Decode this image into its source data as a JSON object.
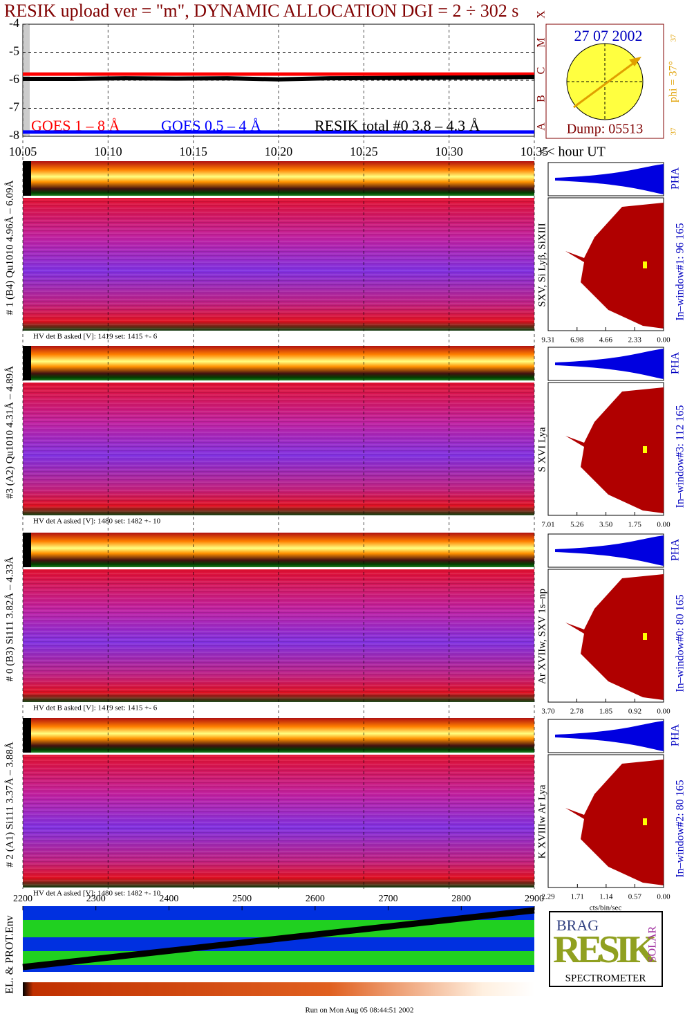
{
  "header": {
    "title": "RESIK upload ver = \"m\", DYNAMIC ALLOCATION  DGI =   2 ÷ 302 s"
  },
  "chart_data": {
    "type": "line",
    "xlabel": "<< hour UT",
    "x": [
      10.05,
      10.08,
      10.11,
      10.14,
      10.17,
      10.2,
      10.23,
      10.26,
      10.29,
      10.32,
      10.35
    ],
    "xlim": [
      10.05,
      10.35
    ],
    "xticks": [
      {
        "value": 10.05,
        "label": "10.05"
      },
      {
        "value": 10.1,
        "label": "10.10"
      },
      10.15,
      {
        "value": 10.2,
        "label": "10.20"
      },
      10.25,
      {
        "value": 10.3,
        "label": "10.30"
      },
      10.35
    ],
    "ylim": [
      -8,
      -4
    ],
    "yticks": [
      -8,
      -7,
      -6,
      -5,
      -4
    ],
    "grid": true,
    "class_letters": [
      "A",
      "B",
      "C",
      "M",
      "X"
    ],
    "series": [
      {
        "name": "GOES 1 – 8 Å",
        "color": "#ff0000",
        "values": [
          -5.78,
          -5.78,
          -5.78,
          -5.78,
          -5.78,
          -5.78,
          -5.78,
          -5.78,
          -5.78,
          -5.78,
          -5.78
        ]
      },
      {
        "name": "GOES 0.5 – 4 Å",
        "color": "#0000ff",
        "values": [
          -7.85,
          -7.85,
          -7.85,
          -7.85,
          -7.85,
          -7.85,
          -7.85,
          -7.85,
          -7.85,
          -7.85,
          -7.85
        ]
      },
      {
        "name": "RESIK total #0  3.8 – 4.3 Å",
        "color": "#000000",
        "values": [
          -5.95,
          -5.95,
          -5.93,
          -5.94,
          -5.93,
          -5.97,
          -5.93,
          -5.92,
          -5.91,
          -5.9,
          -5.88
        ]
      }
    ]
  },
  "sun": {
    "date": "27 07 2002",
    "phi": "phi = 37°",
    "n1": "37",
    "n2": "37",
    "dump": "Dump: 05513"
  },
  "panels": [
    {
      "label": "# 1 (B4) Qu1010 4.96Å – 6.09Å",
      "lines": "SXV, Si Lyβ, SiXIII",
      "pha": "PHA",
      "window": "In–window#1:   96 165",
      "hv": "HV det B asked [V]:  1419 set:  1415 +-    6",
      "xlim": [
        9.31,
        0
      ],
      "xticks": [
        9.31,
        6.98,
        4.66,
        2.33,
        {
          "value": 0,
          "label": "0.00"
        }
      ]
    },
    {
      "label": "#3 (A2) Qu1010  4.31Å – 4.89Å",
      "lines": "S XVI Lya",
      "pha": "PHA",
      "window": "In–window#3:  112 165",
      "hv": "HV det A asked [V]:  1480 set:  1482 +-    10",
      "xlim": [
        7.01,
        0
      ],
      "xticks": [
        7.01,
        5.26,
        {
          "value": 3.5,
          "label": "3.50"
        },
        1.75,
        {
          "value": 0,
          "label": "0.00"
        }
      ]
    },
    {
      "label": "# 0 (B3) Si111  3.82Å – 4.33Å",
      "lines": "Ar XVIIw, SXV 1s–np",
      "pha": "PHA",
      "window": "In–window#0:   80 165",
      "hv": "HV det B asked [V]:  1419 set:  1415 +-    6",
      "xlim": [
        3.7,
        0
      ],
      "xticks": [
        {
          "value": 3.7,
          "label": "3.70"
        },
        2.78,
        1.85,
        0.92,
        {
          "value": 0,
          "label": "0.00"
        }
      ]
    },
    {
      "label": "# 2 (A1) Si111  3.37Å – 3.88Å",
      "lines": "K XVIIIw  Ar Lya",
      "pha": "PHA",
      "window": "In–window#2:   80 165",
      "hv": "HV det A asked [V]:  1480 set:  1482 +-    10",
      "xlim": [
        2.29,
        0
      ],
      "xticks": [
        2.29,
        1.71,
        1.14,
        0.57,
        {
          "value": 0,
          "label": "0.00"
        }
      ]
    }
  ],
  "env_panel": {
    "label": "EL. & PROT.Env",
    "xlim": [
      2200,
      2900
    ],
    "xticks": [
      2200,
      2300,
      2400,
      2500,
      2600,
      2700,
      2800,
      2900
    ]
  },
  "hist_unit": "cts/bin/sec",
  "logo": {
    "top": "BRAG",
    "main": "RESIK",
    "side": "SOLAR",
    "bottom": "SPECTROMETER"
  },
  "footer": "Run on Mon Aug 05 08:44:51 2002"
}
